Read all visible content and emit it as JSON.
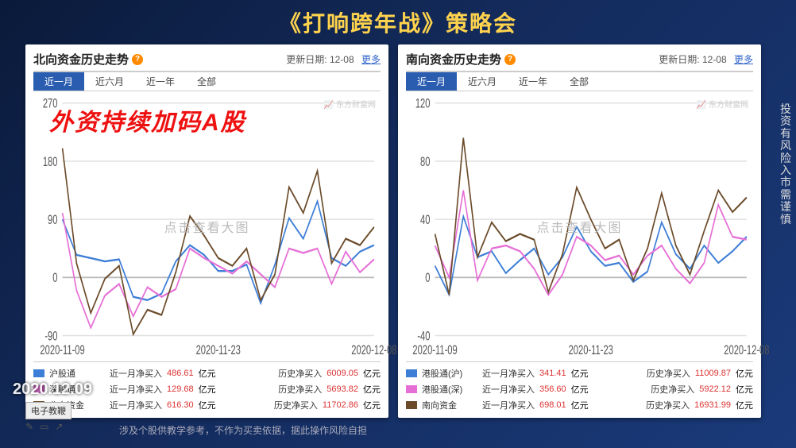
{
  "banner": "《打响跨年战》策略会",
  "side_warning": "投资有风险  入市需谨慎",
  "date_overlay_text": "2020.12.09",
  "disclaimer": "涉及个股供教学参考，不作为买卖依据，据此操作风险自担",
  "footer_tool_label": "电子教鞭",
  "panels": [
    {
      "title": "北向资金历史走势",
      "update_label": "更新日期:",
      "update_date": "12-08",
      "more_label": "更多",
      "range_tabs": [
        "近一月",
        "近六月",
        "近一年",
        "全部"
      ],
      "active_range_index": 0,
      "overlay_caption": "外资持续加码A股",
      "chart": {
        "type": "line",
        "ylim": [
          -90,
          270
        ],
        "yticks": [
          -90,
          0,
          90,
          180,
          270
        ],
        "xlabels": [
          "2020-11-09",
          "2020-11-23",
          "2020-12-08"
        ],
        "grid_color": "#e0e0e0",
        "axis_color": "#999",
        "label_fontsize": 11,
        "series": [
          {
            "name": "沪股通",
            "color": "#3d7ed6",
            "values": [
              90,
              35,
              30,
              25,
              28,
              -30,
              -35,
              -25,
              25,
              50,
              35,
              10,
              10,
              20,
              -40,
              20,
              92,
              60,
              118,
              30,
              18,
              40,
              50
            ],
            "month_label": "近一月净买入",
            "month_value": "486.61",
            "month_unit": "亿元",
            "hist_label": "历史净买入",
            "hist_value": "6009.05",
            "hist_unit": "亿元"
          },
          {
            "name": "深股通",
            "color": "#e66fd6",
            "values": [
              100,
              -20,
              -78,
              -28,
              -10,
              -60,
              -15,
              -30,
              -18,
              45,
              30,
              18,
              6,
              25,
              5,
              -15,
              45,
              38,
              45,
              -10,
              40,
              8,
              28
            ],
            "month_label": "近一月净买入",
            "month_value": "129.68",
            "month_unit": "亿元",
            "hist_label": "历史净买入",
            "hist_value": "5693.82",
            "hist_unit": "亿元"
          },
          {
            "name": "北向资金",
            "color": "#6b4b2a",
            "values": [
              200,
              22,
              -55,
              -2,
              18,
              -88,
              -50,
              -58,
              8,
              95,
              65,
              30,
              18,
              45,
              -35,
              5,
              140,
              100,
              165,
              22,
              60,
              50,
              78
            ],
            "month_label": "近一月净买入",
            "month_value": "616.30",
            "month_unit": "亿元",
            "hist_label": "历史净买入",
            "hist_value": "11702.86",
            "hist_unit": "亿元"
          }
        ],
        "watermark": "点击查看大图",
        "em_watermark": "东方财富网"
      }
    },
    {
      "title": "南向资金历史走势",
      "update_label": "更新日期:",
      "update_date": "12-08",
      "more_label": "更多",
      "range_tabs": [
        "近一月",
        "近六月",
        "近一年",
        "全部"
      ],
      "active_range_index": 0,
      "chart": {
        "type": "line",
        "ylim": [
          -40,
          120
        ],
        "yticks": [
          -40,
          0,
          40,
          80,
          120
        ],
        "xlabels": [
          "2020-11-09",
          "2020-11-23",
          "2020-12-08"
        ],
        "grid_color": "#e0e0e0",
        "axis_color": "#999",
        "label_fontsize": 11,
        "series": [
          {
            "name": "港股通(沪)",
            "color": "#3d7ed6",
            "values": [
              8,
              -12,
              42,
              14,
              18,
              3,
              12,
              20,
              2,
              14,
              35,
              18,
              8,
              10,
              -3,
              4,
              38,
              16,
              6,
              22,
              10,
              18,
              28
            ],
            "month_label": "近一月净买入",
            "month_value": "341.41",
            "month_unit": "亿元",
            "hist_label": "历史净买入",
            "hist_value": "11009.87",
            "hist_unit": "亿元"
          },
          {
            "name": "港股通(深)",
            "color": "#e66fd6",
            "values": [
              22,
              0,
              60,
              -2,
              20,
              22,
              18,
              6,
              -12,
              2,
              28,
              22,
              12,
              15,
              2,
              15,
              22,
              6,
              -4,
              10,
              50,
              28,
              26
            ],
            "month_label": "近一月净买入",
            "month_value": "356.60",
            "month_unit": "亿元",
            "hist_label": "历史净买入",
            "hist_value": "5922.12",
            "hist_unit": "亿元"
          },
          {
            "name": "南向资金",
            "color": "#6b4b2a",
            "values": [
              30,
              -12,
              96,
              14,
              38,
              25,
              30,
              26,
              -10,
              16,
              62,
              40,
              20,
              26,
              -2,
              20,
              58,
              22,
              2,
              32,
              60,
              45,
              55
            ],
            "month_label": "近一月净买入",
            "month_value": "698.01",
            "month_unit": "亿元",
            "hist_label": "历史净买入",
            "hist_value": "16931.99",
            "hist_unit": "亿元"
          }
        ],
        "watermark": "点击查看大图",
        "em_watermark": "东方财富网"
      }
    }
  ],
  "colors": {
    "banner_text": "#ffd34d",
    "bg_gradient_from": "#0a1a3a",
    "bg_gradient_to": "#1a3a7a",
    "tab_active_bg": "#2a5db0",
    "overlay_red": "#e11",
    "money_red": "#d33",
    "link_blue": "#3366cc"
  }
}
